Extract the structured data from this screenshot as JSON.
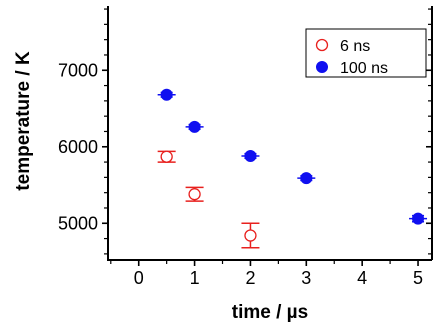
{
  "chart_data": {
    "type": "scatter",
    "xlabel": "time / µs",
    "ylabel": "temperature / K",
    "xlim": [
      -0.55,
      5.25
    ],
    "ylim": [
      4520,
      7840
    ],
    "xticks": [
      0,
      1,
      2,
      3,
      4,
      5
    ],
    "yticks": [
      5000,
      6000,
      7000
    ],
    "xtick_labels": [
      "0",
      "1",
      "2",
      "3",
      "4",
      "5"
    ],
    "ytick_labels": [
      "5000",
      "6000",
      "7000"
    ],
    "grid": false,
    "legend_position": "top-right",
    "series": [
      {
        "name": "6 ns",
        "color": "#e8201e",
        "marker": "open-circle",
        "points": [
          {
            "x": 0.5,
            "y": 5870,
            "err": 70
          },
          {
            "x": 1.0,
            "y": 5380,
            "err": 90
          },
          {
            "x": 2.0,
            "y": 4840,
            "err": 160
          }
        ]
      },
      {
        "name": "100 ns",
        "color": "#1010f0",
        "marker": "filled-circle",
        "points": [
          {
            "x": 0.5,
            "y": 6680,
            "err": 30
          },
          {
            "x": 1.0,
            "y": 6260,
            "err": 30
          },
          {
            "x": 2.0,
            "y": 5880,
            "err": 30
          },
          {
            "x": 3.0,
            "y": 5590,
            "err": 30
          },
          {
            "x": 5.0,
            "y": 5060,
            "err": 40
          }
        ]
      }
    ]
  }
}
